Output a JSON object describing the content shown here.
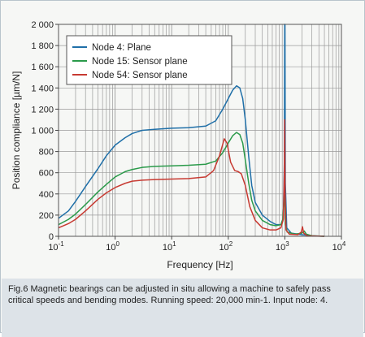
{
  "chart_data": {
    "type": "line",
    "x_scale": "log",
    "xlim": [
      0.1,
      10000
    ],
    "ylim": [
      0,
      2000
    ],
    "y_step": 200,
    "grid": true,
    "legend_position": "top-left",
    "xlabel": "Frequency [Hz]",
    "ylabel": "Position compliance [µm/N]",
    "x_ticks": [
      {
        "value": 0.1,
        "base": "10",
        "exp": "-1"
      },
      {
        "value": 1,
        "base": "10",
        "exp": "0"
      },
      {
        "value": 10,
        "base": "10",
        "exp": "1"
      },
      {
        "value": 100,
        "base": "10",
        "exp": "2"
      },
      {
        "value": 1000,
        "base": "10",
        "exp": "3"
      },
      {
        "value": 10000,
        "base": "10",
        "exp": "4"
      }
    ],
    "y_ticks": [
      {
        "value": 0,
        "label": "0"
      },
      {
        "value": 200,
        "label": "200"
      },
      {
        "value": 400,
        "label": "400"
      },
      {
        "value": 600,
        "label": "600"
      },
      {
        "value": 800,
        "label": "800"
      },
      {
        "value": 1000,
        "label": "1 000"
      },
      {
        "value": 1200,
        "label": "1 200"
      },
      {
        "value": 1400,
        "label": "1 400"
      },
      {
        "value": 1600,
        "label": "1 600"
      },
      {
        "value": 1800,
        "label": "1 800"
      },
      {
        "value": 2000,
        "label": "2 000"
      }
    ],
    "series": [
      {
        "name": "Node 4: Plane",
        "color": "#1f6fa8",
        "points": [
          [
            0.1,
            170
          ],
          [
            0.15,
            240
          ],
          [
            0.2,
            330
          ],
          [
            0.3,
            470
          ],
          [
            0.5,
            640
          ],
          [
            0.7,
            760
          ],
          [
            1,
            860
          ],
          [
            1.5,
            930
          ],
          [
            2,
            970
          ],
          [
            3,
            1000
          ],
          [
            5,
            1010
          ],
          [
            10,
            1020
          ],
          [
            20,
            1025
          ],
          [
            40,
            1040
          ],
          [
            60,
            1090
          ],
          [
            80,
            1200
          ],
          [
            100,
            1300
          ],
          [
            120,
            1380
          ],
          [
            140,
            1420
          ],
          [
            160,
            1400
          ],
          [
            180,
            1300
          ],
          [
            200,
            1100
          ],
          [
            230,
            750
          ],
          [
            260,
            480
          ],
          [
            300,
            320
          ],
          [
            400,
            200
          ],
          [
            550,
            140
          ],
          [
            700,
            110
          ],
          [
            850,
            110
          ],
          [
            940,
            170
          ],
          [
            980,
            700
          ],
          [
            995,
            2000
          ],
          [
            1005,
            2000
          ],
          [
            1020,
            500
          ],
          [
            1080,
            80
          ],
          [
            1300,
            30
          ],
          [
            2000,
            15
          ],
          [
            3000,
            5
          ],
          [
            5000,
            0
          ]
        ]
      },
      {
        "name": "Node 15: Sensor plane",
        "color": "#2a9a4a",
        "points": [
          [
            0.1,
            110
          ],
          [
            0.15,
            160
          ],
          [
            0.2,
            210
          ],
          [
            0.3,
            300
          ],
          [
            0.5,
            420
          ],
          [
            0.7,
            490
          ],
          [
            1,
            560
          ],
          [
            1.5,
            610
          ],
          [
            2,
            630
          ],
          [
            3,
            650
          ],
          [
            5,
            660
          ],
          [
            10,
            665
          ],
          [
            20,
            670
          ],
          [
            40,
            680
          ],
          [
            60,
            710
          ],
          [
            80,
            790
          ],
          [
            100,
            880
          ],
          [
            120,
            950
          ],
          [
            140,
            980
          ],
          [
            160,
            960
          ],
          [
            180,
            880
          ],
          [
            200,
            720
          ],
          [
            230,
            500
          ],
          [
            260,
            340
          ],
          [
            300,
            240
          ],
          [
            400,
            150
          ],
          [
            550,
            110
          ],
          [
            700,
            100
          ],
          [
            850,
            110
          ],
          [
            920,
            160
          ],
          [
            960,
            320
          ],
          [
            990,
            420
          ],
          [
            1020,
            120
          ],
          [
            1100,
            40
          ],
          [
            1500,
            20
          ],
          [
            2000,
            30
          ],
          [
            2200,
            50
          ],
          [
            2400,
            20
          ],
          [
            3000,
            5
          ],
          [
            5000,
            0
          ]
        ]
      },
      {
        "name": "Node 54: Sensor plane",
        "color": "#c73a32",
        "points": [
          [
            0.1,
            80
          ],
          [
            0.15,
            120
          ],
          [
            0.2,
            160
          ],
          [
            0.3,
            240
          ],
          [
            0.5,
            350
          ],
          [
            0.7,
            410
          ],
          [
            1,
            460
          ],
          [
            1.5,
            500
          ],
          [
            2,
            520
          ],
          [
            3,
            530
          ],
          [
            5,
            535
          ],
          [
            10,
            540
          ],
          [
            20,
            545
          ],
          [
            40,
            560
          ],
          [
            55,
            620
          ],
          [
            70,
            760
          ],
          [
            85,
            920
          ],
          [
            95,
            880
          ],
          [
            110,
            700
          ],
          [
            130,
            620
          ],
          [
            150,
            610
          ],
          [
            170,
            590
          ],
          [
            200,
            480
          ],
          [
            240,
            280
          ],
          [
            300,
            150
          ],
          [
            400,
            80
          ],
          [
            550,
            60
          ],
          [
            700,
            60
          ],
          [
            850,
            80
          ],
          [
            940,
            160
          ],
          [
            980,
            600
          ],
          [
            995,
            1100
          ],
          [
            1010,
            400
          ],
          [
            1050,
            60
          ],
          [
            1200,
            20
          ],
          [
            1700,
            15
          ],
          [
            1950,
            40
          ],
          [
            2050,
            90
          ],
          [
            2150,
            30
          ],
          [
            2500,
            5
          ],
          [
            5000,
            0
          ]
        ]
      }
    ]
  },
  "caption": "Fig.6 Magnetic bearings can be adjusted in situ allowing a machine to safely pass critical speeds and bending modes. Running speed: 20,000 min-1. Input node: 4."
}
